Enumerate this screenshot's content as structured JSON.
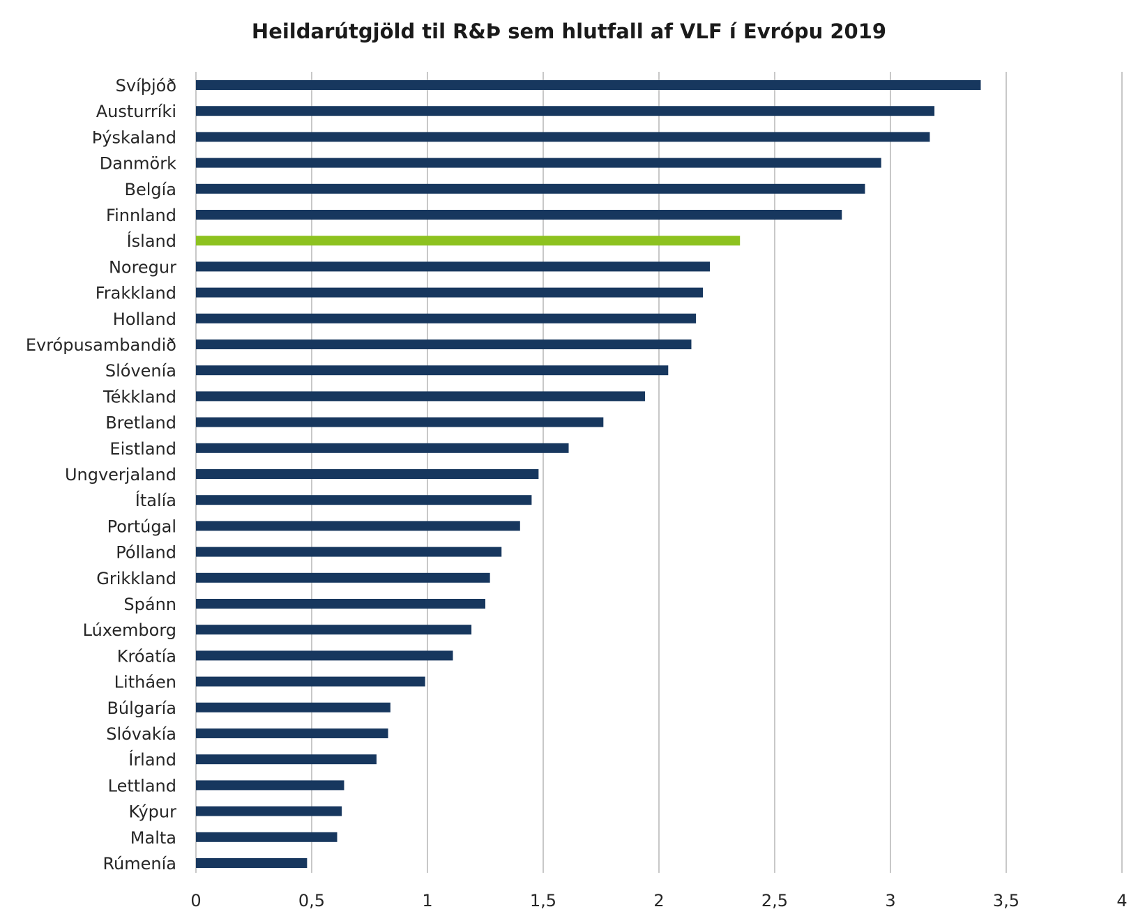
{
  "chart_data": {
    "type": "bar",
    "orientation": "horizontal",
    "title": "Heildarútgjöld til R&Þ sem hlutfall af VLF í Evrópu 2019",
    "xlabel": "",
    "ylabel": "",
    "xlim": [
      0,
      4
    ],
    "x_ticks": [
      "0",
      "0,5",
      "1",
      "1,5",
      "2",
      "2,5",
      "3",
      "3,5",
      "4"
    ],
    "x_tick_values": [
      0,
      0.5,
      1,
      1.5,
      2,
      2.5,
      3,
      3.5,
      4
    ],
    "grid": "vertical",
    "legend": "none",
    "colors": {
      "default": "#17375e",
      "highlight": "#8dc21f"
    },
    "highlight_category": "Ísland",
    "categories": [
      "Svíþjóð",
      "Austurríki",
      "Þýskaland",
      "Danmörk",
      "Belgía",
      "Finnland",
      "Ísland",
      "Noregur",
      "Frakkland",
      "Holland",
      "Evrópusambandið",
      "Slóvenía",
      "Tékkland",
      "Bretland",
      "Eistland",
      "Ungverjaland",
      "Ítalía",
      "Portúgal",
      "Pólland",
      "Grikkland",
      "Spánn",
      "Lúxemborg",
      "Króatía",
      "Litháen",
      "Búlgaría",
      "Slóvakía",
      "Írland",
      "Lettland",
      "Kýpur",
      "Malta",
      "Rúmenía"
    ],
    "values": [
      3.39,
      3.19,
      3.17,
      2.96,
      2.89,
      2.79,
      2.35,
      2.22,
      2.19,
      2.16,
      2.14,
      2.04,
      1.94,
      1.76,
      1.61,
      1.48,
      1.45,
      1.4,
      1.32,
      1.27,
      1.25,
      1.19,
      1.11,
      0.99,
      0.84,
      0.83,
      0.78,
      0.64,
      0.63,
      0.61,
      0.48
    ]
  }
}
